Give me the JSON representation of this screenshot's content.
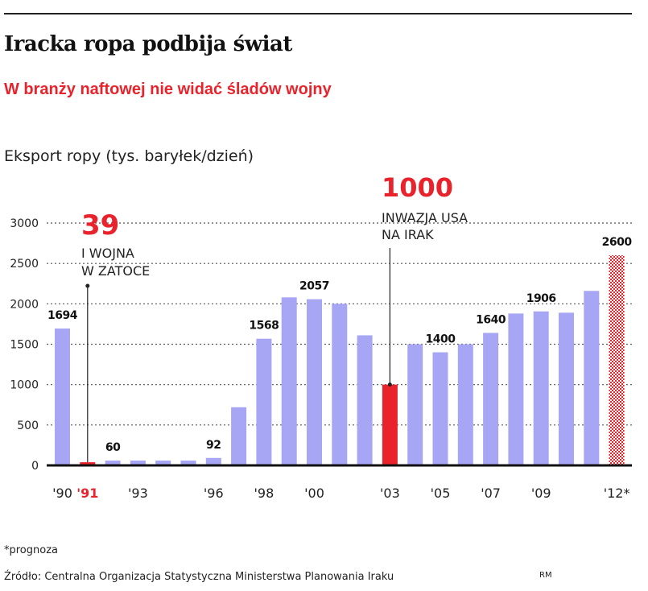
{
  "header": {
    "title": "Iracka ropa podbija świat",
    "subtitle": "W branży naftowej nie widać śladów wojny",
    "ylabel": "Eksport ropy (tys. baryłek/dzień)"
  },
  "chart_data": {
    "type": "bar",
    "title": "Iracka ropa podbija świat",
    "ylabel": "Eksport ropy (tys. baryłek/dzień)",
    "ylim": [
      0,
      3000
    ],
    "yticks": [
      "0",
      "500",
      "1000",
      "1500",
      "2000",
      "2500",
      "3000"
    ],
    "ytick_values": [
      0,
      500,
      1000,
      1500,
      2000,
      2500,
      3000
    ],
    "categories": [
      "1990",
      "1991",
      "1992",
      "1993",
      "1994",
      "1995",
      "1996",
      "1997",
      "1998",
      "1999",
      "2000",
      "2001",
      "2002",
      "2003",
      "2004",
      "2005",
      "2006",
      "2007",
      "2008",
      "2009",
      "2010",
      "2011",
      "2012"
    ],
    "values": [
      1694,
      39,
      60,
      60,
      60,
      60,
      92,
      720,
      1568,
      2080,
      2057,
      2000,
      1610,
      1000,
      1500,
      1400,
      1500,
      1640,
      1880,
      1906,
      1890,
      2160,
      2600
    ],
    "highlight_colors": {
      "1991": "#e8232b",
      "2003": "#e8232b"
    },
    "forecast_category": "2012",
    "bar_color": "#a7a6f5",
    "highlight_color": "#e8232b",
    "forecast_color": "#e8232b",
    "x_tick_labels": [
      {
        "category": "1990",
        "text": "'90",
        "highlight": false
      },
      {
        "category": "1991",
        "text": "'91",
        "highlight": true
      },
      {
        "category": "1993",
        "text": "'93",
        "highlight": false
      },
      {
        "category": "1996",
        "text": "'96",
        "highlight": false
      },
      {
        "category": "1998",
        "text": "'98",
        "highlight": false
      },
      {
        "category": "2000",
        "text": "'00",
        "highlight": false
      },
      {
        "category": "2003",
        "text": "'03",
        "highlight": false
      },
      {
        "category": "2005",
        "text": "'05",
        "highlight": false
      },
      {
        "category": "2007",
        "text": "'07",
        "highlight": false
      },
      {
        "category": "2009",
        "text": "'09",
        "highlight": false
      },
      {
        "category": "2012",
        "text": "'12*",
        "highlight": false
      }
    ],
    "data_labels": [
      {
        "category": "1990",
        "text": "1694"
      },
      {
        "category": "1992",
        "text": "60"
      },
      {
        "category": "1996",
        "text": "92"
      },
      {
        "category": "1998",
        "text": "1568"
      },
      {
        "category": "2000",
        "text": "2057"
      },
      {
        "category": "2005",
        "text": "1400"
      },
      {
        "category": "2007",
        "text": "1640"
      },
      {
        "category": "2009",
        "text": "1906"
      },
      {
        "category": "2012",
        "text": "2600"
      }
    ],
    "annotations": [
      {
        "category": "1991",
        "value_text": "39",
        "lines": [
          "I WOJNA",
          "W ZATOCE"
        ]
      },
      {
        "category": "2003",
        "value_text": "1000",
        "lines": [
          "INWAZJA USA",
          "NA IRAK"
        ]
      }
    ]
  },
  "footer": {
    "footnote": "*prognoza",
    "source": "Źródło: Centralna Organizacja Statystyczna Ministerstwa Planowania Iraku",
    "author": "RM"
  }
}
